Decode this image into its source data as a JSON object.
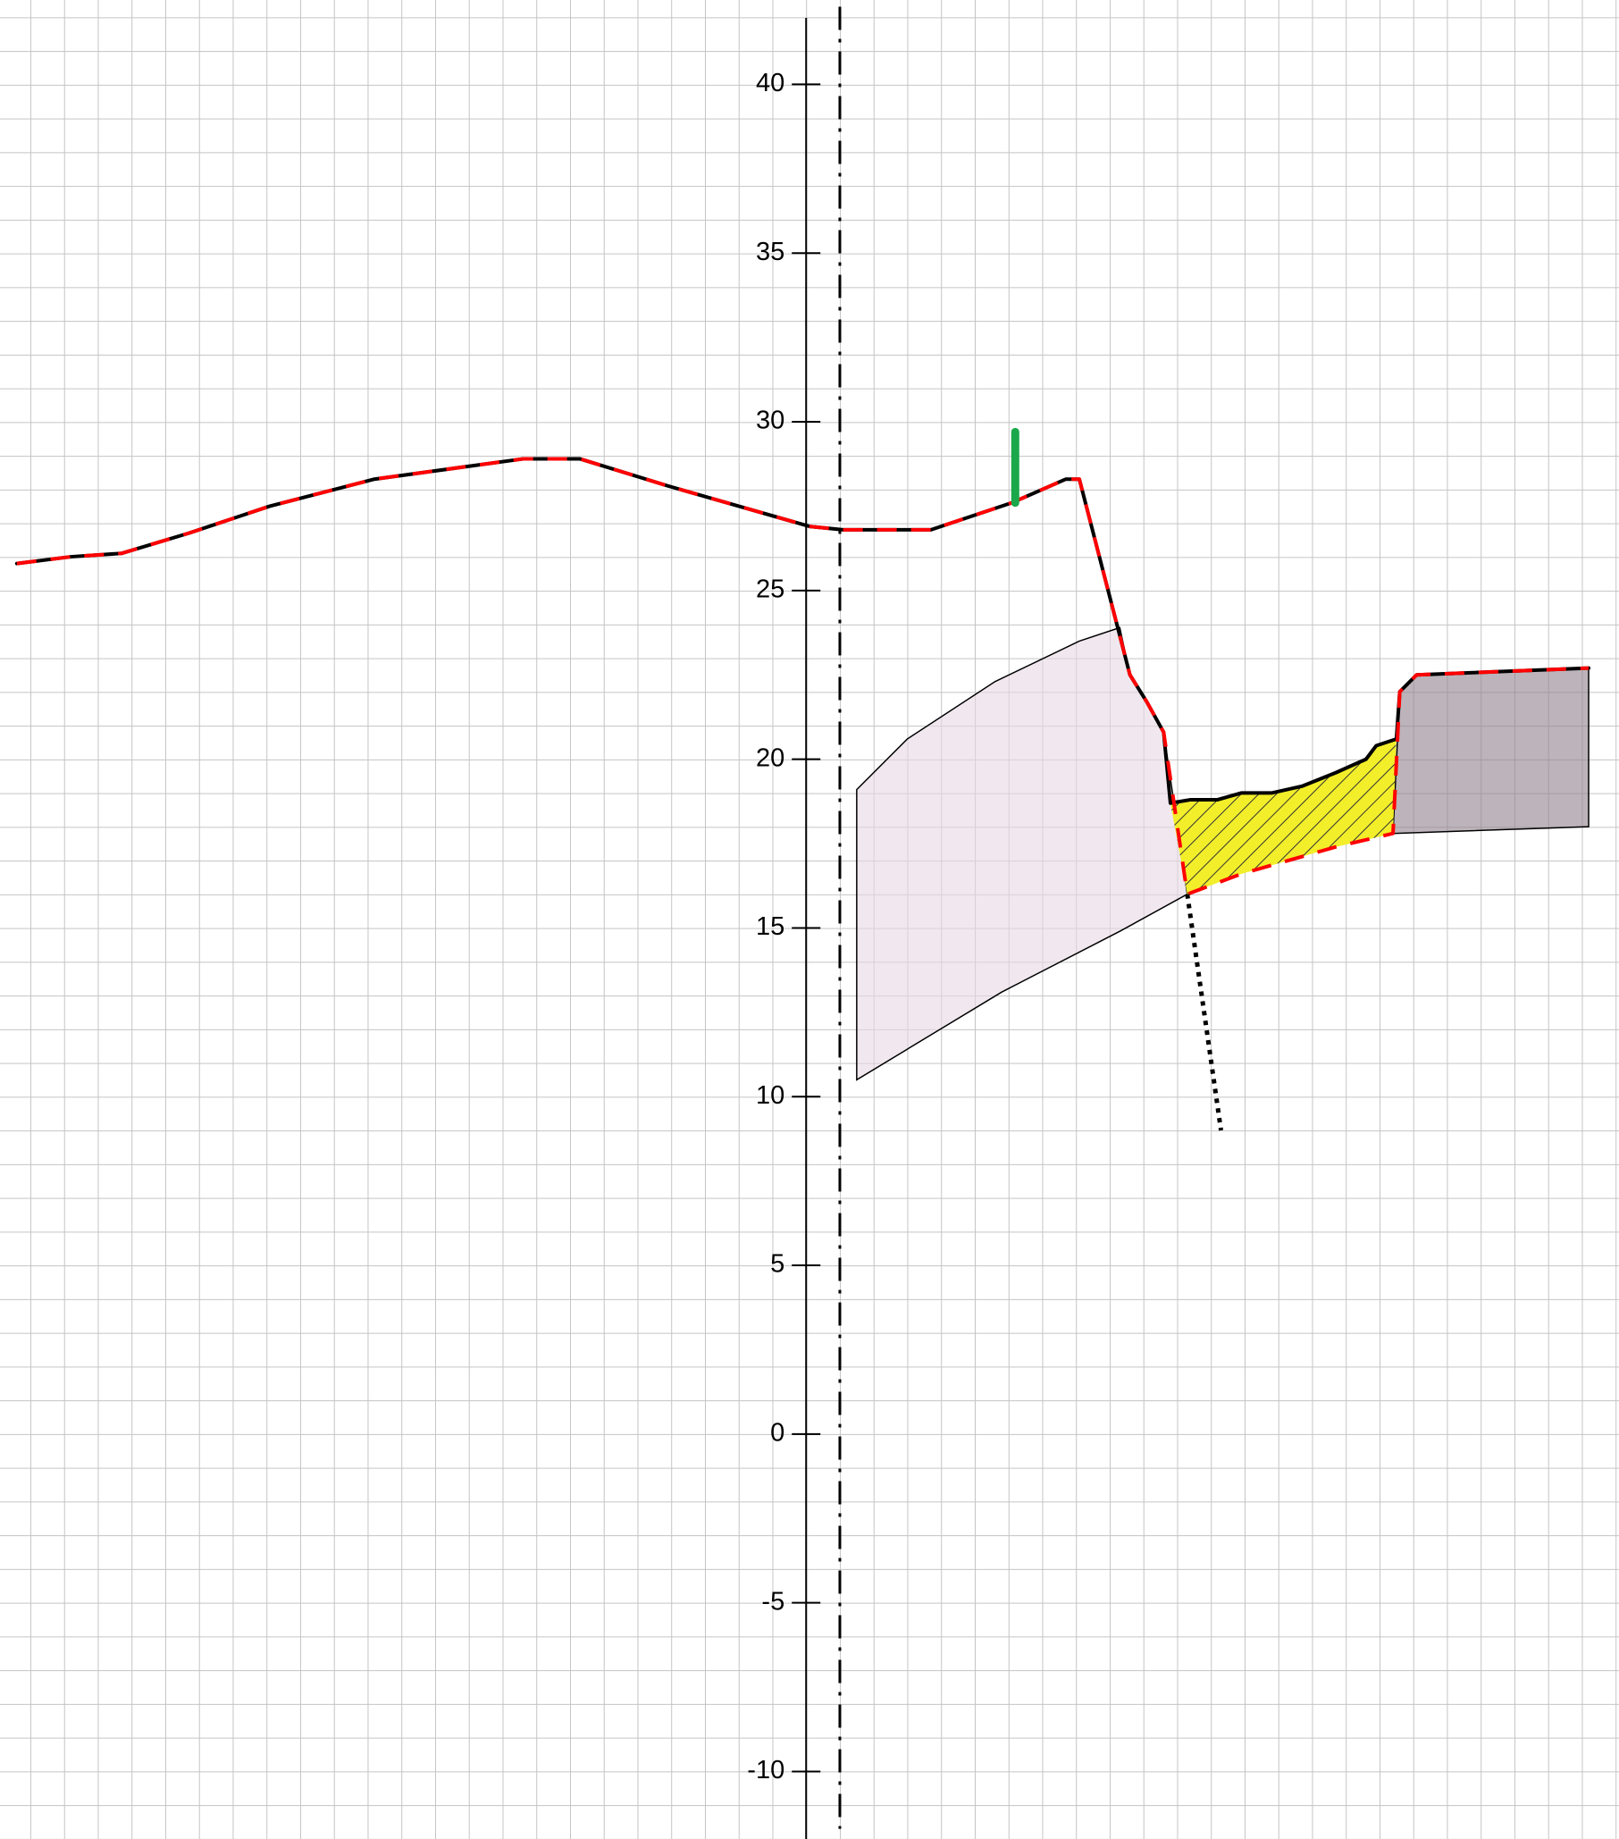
{
  "chart_data": {
    "type": "line",
    "xlim": [
      -23.9,
      24.1
    ],
    "ylim": [
      -12,
      42.5
    ],
    "yticks": [
      40,
      35,
      30,
      25,
      20,
      15,
      10,
      5,
      0,
      -5,
      -10
    ],
    "grid": true,
    "areas": [
      {
        "color": "#e6d8e2",
        "outline": "#000",
        "x": [
          1.5,
          3.0,
          5.6,
          8.1,
          9.3,
          9.6,
          10.1,
          10.6,
          11.3,
          9.3,
          5.8,
          1.5
        ],
        "values": [
          19.1,
          20.6,
          22.3,
          23.5,
          23.9,
          22.5,
          21.7,
          20.8,
          16.0,
          14.9,
          13.1,
          10.5
        ]
      },
      {
        "color": "#8f828c",
        "outline": "#000",
        "x": [
          17.6,
          18.1,
          23.2,
          23.2,
          17.4
        ],
        "values": [
          22.0,
          22.5,
          22.7,
          18.0,
          17.8
        ]
      },
      {
        "color": "#f2ee2a",
        "outline": "none",
        "hatch": true,
        "x": [
          10.8,
          11.4,
          12.2,
          12.9,
          13.8,
          14.7,
          15.7,
          16.6,
          16.9,
          17.5,
          17.4,
          15.7,
          12.9,
          11.3
        ],
        "values": [
          18.7,
          18.8,
          18.8,
          19.0,
          19.0,
          19.2,
          19.6,
          20.0,
          20.4,
          20.6,
          17.8,
          17.4,
          16.6,
          16.0
        ]
      }
    ],
    "series": [
      {
        "color": "#000000",
        "style": "dashdot",
        "width": 3,
        "x": [
          1.0,
          1.0
        ],
        "values": [
          42.3,
          -11.7
        ]
      },
      {
        "color": "#000000",
        "style": "solid",
        "width": 4,
        "x": [
          -23.4,
          -21.8,
          -20.3,
          -18.3,
          -15.9,
          -12.8,
          -8.4,
          -6.7,
          -4.1,
          0.1,
          1.1,
          3.7,
          6.1,
          7.7,
          8.1,
          9.6,
          10.1,
          10.6,
          10.8,
          11.4,
          12.2,
          12.9,
          13.8,
          14.7,
          15.7,
          16.6,
          16.9,
          17.5,
          17.6,
          18.1,
          23.2
        ],
        "values": [
          25.8,
          26.0,
          26.1,
          26.7,
          27.5,
          28.3,
          28.9,
          28.9,
          28.1,
          26.9,
          26.8,
          26.8,
          27.6,
          28.3,
          28.3,
          22.5,
          21.7,
          20.8,
          18.7,
          18.8,
          18.8,
          19.0,
          19.0,
          19.2,
          19.6,
          20.0,
          20.4,
          20.6,
          22.0,
          22.5,
          22.7
        ]
      },
      {
        "color": "#ff0000",
        "style": "dashed",
        "width": 4,
        "x": [
          -23.4,
          -21.8,
          -20.3,
          -18.3,
          -15.9,
          -12.8,
          -8.4,
          -6.7,
          -4.1,
          0.1,
          1.1,
          3.7,
          6.1,
          7.7,
          8.1,
          9.6,
          10.1,
          10.6,
          11.3,
          12.9,
          15.7,
          17.4,
          17.6,
          18.1,
          23.2
        ],
        "values": [
          25.8,
          26.0,
          26.1,
          26.7,
          27.5,
          28.3,
          28.9,
          28.9,
          28.1,
          26.9,
          26.8,
          26.8,
          27.6,
          28.3,
          28.3,
          22.5,
          21.7,
          20.8,
          16.0,
          16.6,
          17.4,
          17.8,
          22.0,
          22.5,
          22.7
        ]
      },
      {
        "color": "#000000",
        "style": "dotted",
        "width": 5,
        "x": [
          11.3,
          12.3
        ],
        "values": [
          16.0,
          9.0
        ]
      },
      {
        "color": "#1aa84a",
        "style": "solid",
        "width": 9,
        "x": [
          6.2,
          6.2
        ],
        "values": [
          29.7,
          27.6
        ]
      }
    ]
  }
}
